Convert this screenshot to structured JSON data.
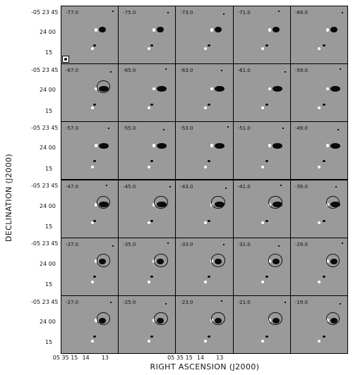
{
  "axes": {
    "ylabel": "DECLINATION (J2000)",
    "xlabel": "RIGHT ASCENSION (J2000)",
    "dec_ticks": [
      [
        "-05 23 45",
        "24 00",
        "15"
      ],
      [
        "-05 23 45",
        "24 00",
        "15"
      ],
      [
        "-05 23 45",
        "24 00",
        "15"
      ],
      [
        "-05 23 45",
        "24 00",
        "15"
      ],
      [
        "-05 23 45",
        "24 00",
        "15"
      ],
      [
        "-05 23 45",
        "24 00",
        "15"
      ]
    ],
    "ra_ticks_left": [
      "05 35 15",
      "14",
      "13"
    ],
    "ra_ticks_right": [
      "05 35 15",
      "14",
      "13"
    ]
  },
  "velocities": [
    "-77.0",
    "-75.0",
    "-73.0",
    "-71.0",
    "-69.0",
    "-67.0",
    "-65.0",
    "-63.0",
    "-61.0",
    "-59.0",
    "-57.0",
    "-55.0",
    "-53.0",
    "-51.0",
    "-49.0",
    "-47.0",
    "-45.0",
    "-43.0",
    "-41.0",
    "-39.0",
    "-37.0",
    "-35.0",
    "-33.0",
    "-31.0",
    "-29.0",
    "-27.0",
    "-25.0",
    "-23.0",
    "-21.0",
    "-19.0"
  ]
}
